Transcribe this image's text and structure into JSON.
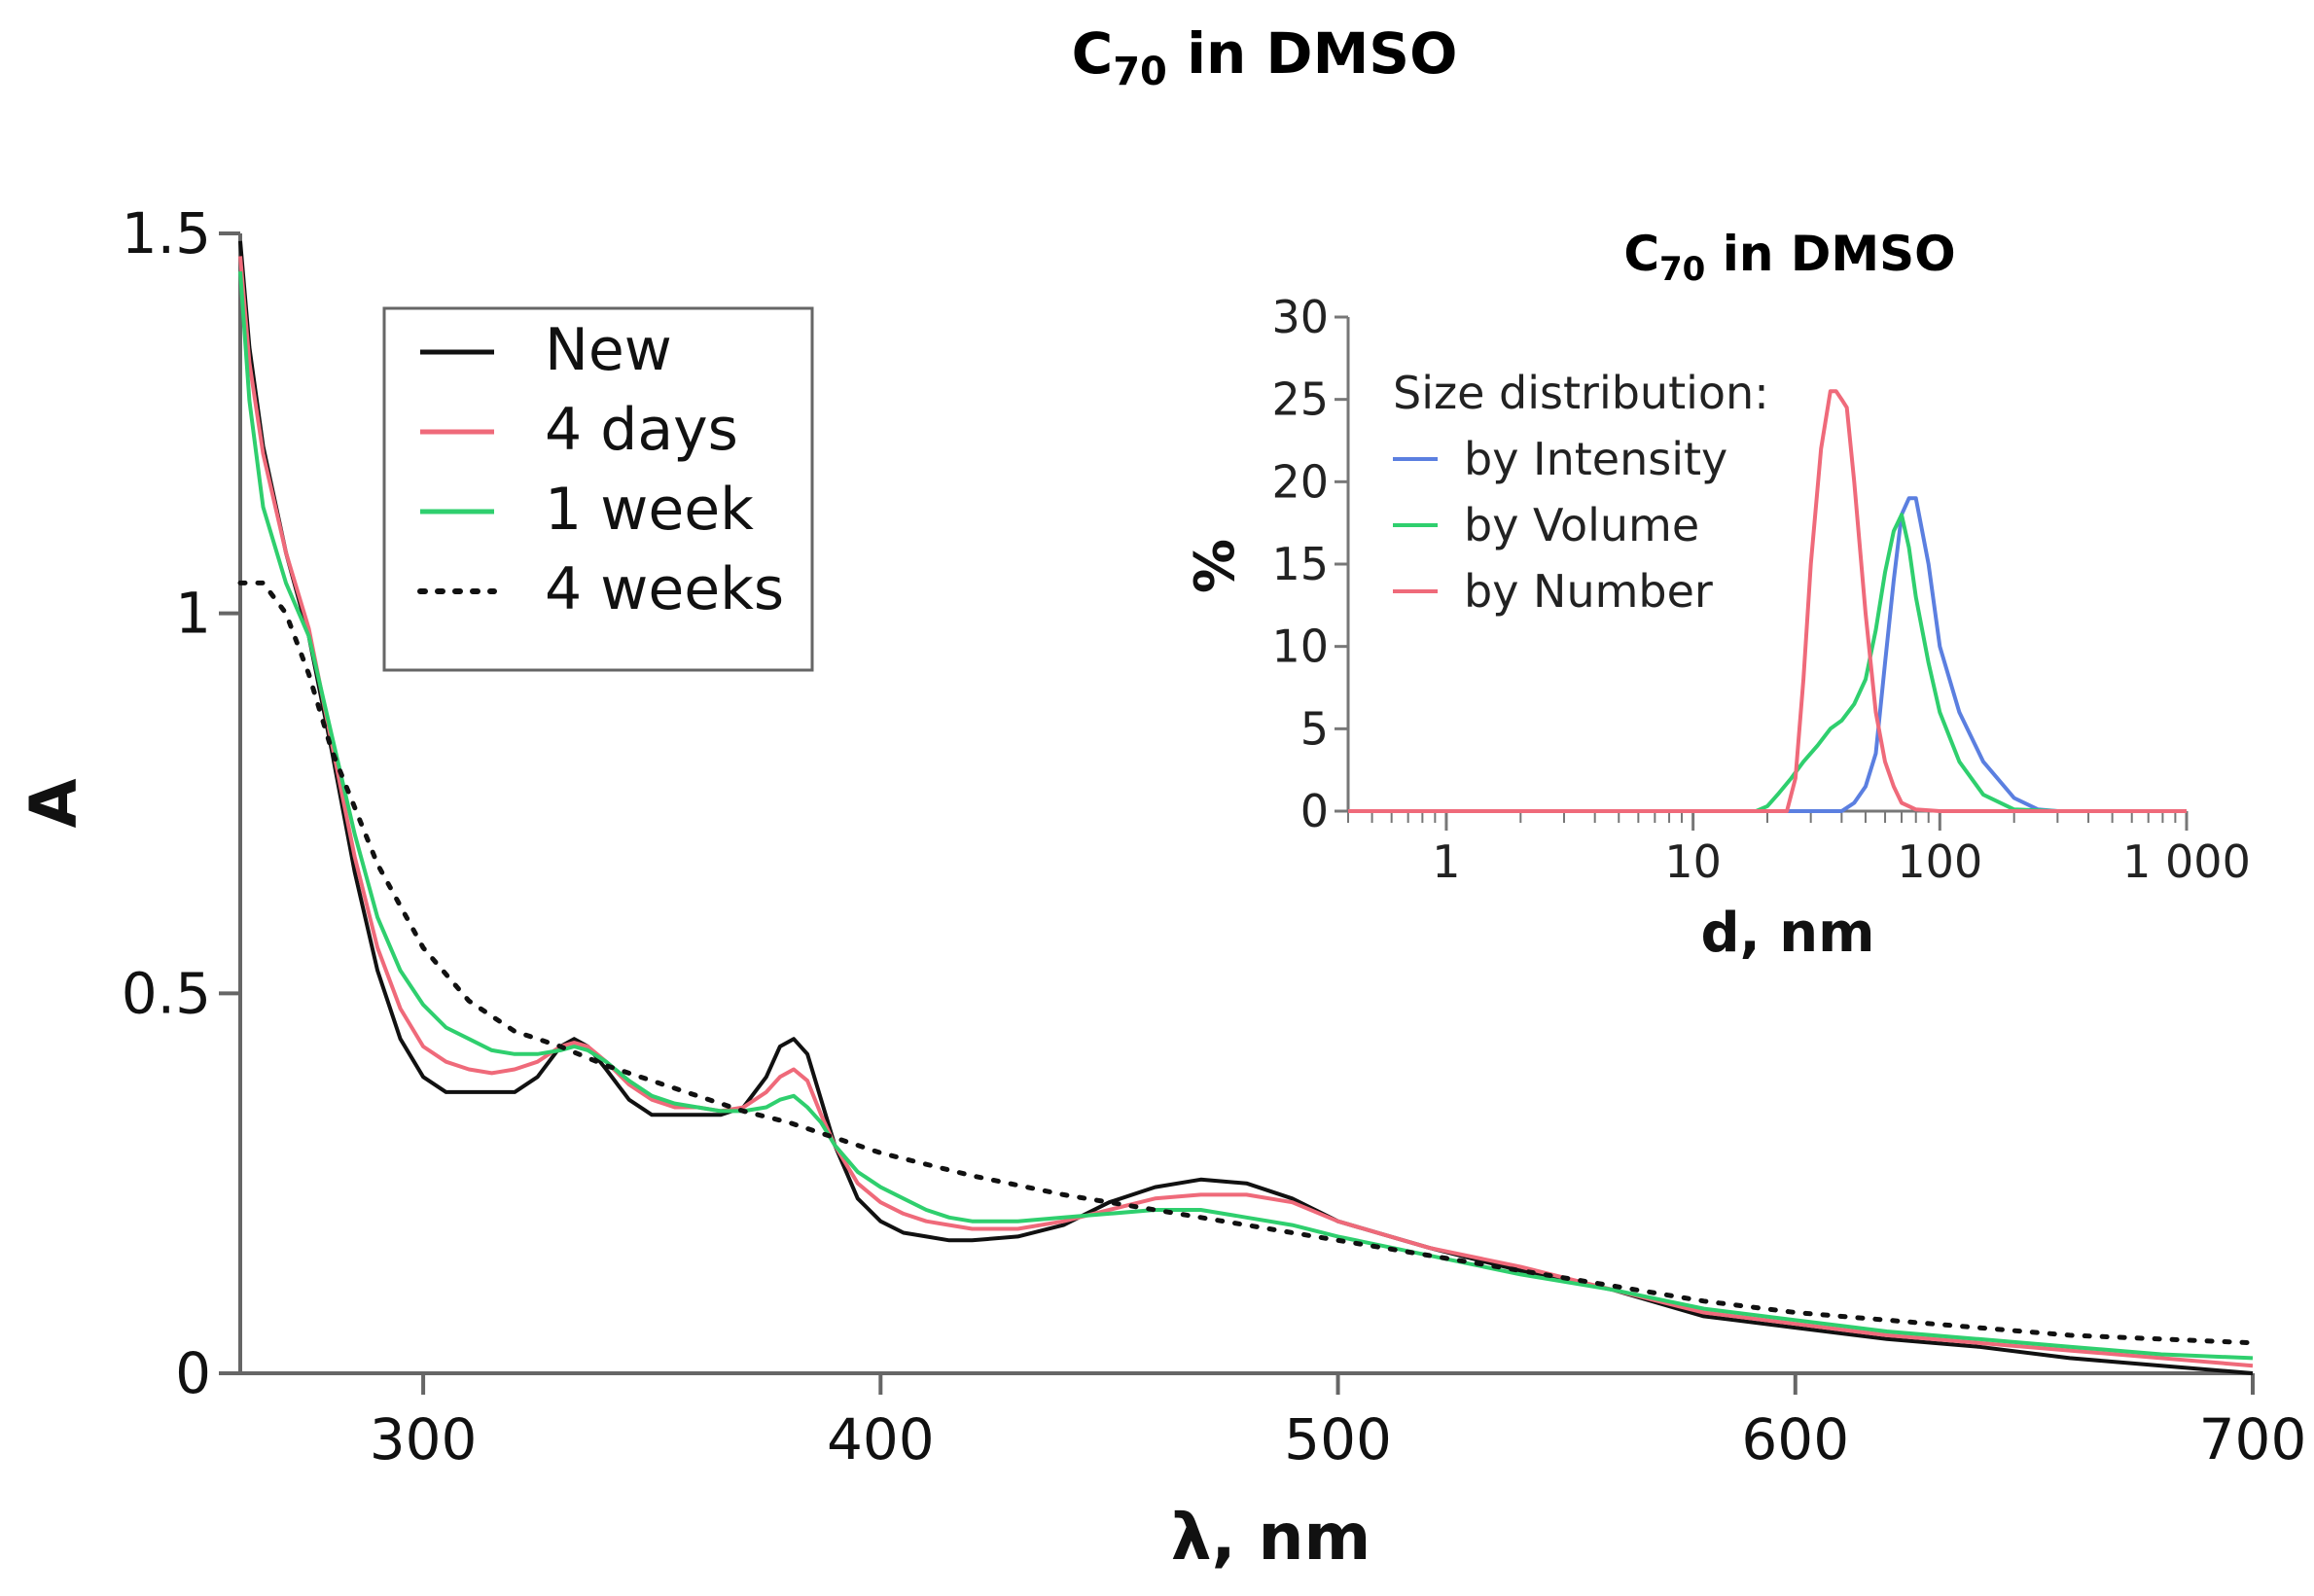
{
  "chart_data": [
    {
      "type": "line",
      "title": "C70 in DMSO",
      "title_base": "C",
      "title_sub": "70",
      "title_rest": " in DMSO",
      "xlabel": "λ, nm",
      "ylabel": "A",
      "xlim": [
        260,
        700
      ],
      "ylim": [
        0,
        1.5
      ],
      "x_ticks": [
        300,
        400,
        500,
        600,
        700
      ],
      "x_tick_labels": [
        "300",
        "400",
        "500",
        "600",
        "700"
      ],
      "y_ticks": [
        0,
        0.5,
        1,
        1.5
      ],
      "y_tick_labels": [
        "0",
        "0.5",
        "1",
        "1.5"
      ],
      "legend": {
        "position": "top-left"
      },
      "series": [
        {
          "name": "New",
          "color": "#111111",
          "style": "solid",
          "x": [
            260,
            262,
            265,
            270,
            275,
            280,
            285,
            290,
            295,
            300,
            305,
            310,
            315,
            320,
            325,
            330,
            333,
            336,
            340,
            345,
            350,
            355,
            360,
            365,
            370,
            375,
            378,
            381,
            384,
            387,
            390,
            395,
            400,
            405,
            410,
            415,
            420,
            430,
            440,
            450,
            460,
            470,
            480,
            490,
            500,
            520,
            540,
            560,
            580,
            600,
            620,
            640,
            660,
            680,
            700
          ],
          "y": [
            1.49,
            1.35,
            1.22,
            1.08,
            0.97,
            0.82,
            0.66,
            0.53,
            0.44,
            0.39,
            0.37,
            0.37,
            0.37,
            0.37,
            0.39,
            0.43,
            0.44,
            0.43,
            0.4,
            0.36,
            0.34,
            0.34,
            0.34,
            0.34,
            0.35,
            0.39,
            0.43,
            0.44,
            0.42,
            0.36,
            0.3,
            0.23,
            0.2,
            0.185,
            0.18,
            0.175,
            0.175,
            0.18,
            0.195,
            0.225,
            0.245,
            0.255,
            0.25,
            0.23,
            0.2,
            0.165,
            0.135,
            0.11,
            0.075,
            0.06,
            0.045,
            0.035,
            0.02,
            0.01,
            0.0
          ]
        },
        {
          "name": "4 days",
          "color": "#ef6a7a",
          "style": "solid",
          "x": [
            260,
            262,
            265,
            270,
            275,
            280,
            285,
            290,
            295,
            300,
            305,
            310,
            315,
            320,
            325,
            330,
            333,
            336,
            340,
            345,
            350,
            355,
            360,
            365,
            370,
            375,
            378,
            381,
            384,
            387,
            390,
            395,
            400,
            405,
            410,
            415,
            420,
            430,
            440,
            450,
            460,
            470,
            480,
            490,
            500,
            520,
            540,
            560,
            580,
            600,
            620,
            640,
            660,
            680,
            700
          ],
          "y": [
            1.47,
            1.33,
            1.21,
            1.08,
            0.98,
            0.83,
            0.68,
            0.56,
            0.48,
            0.43,
            0.41,
            0.4,
            0.395,
            0.4,
            0.41,
            0.43,
            0.435,
            0.43,
            0.41,
            0.38,
            0.36,
            0.35,
            0.35,
            0.345,
            0.35,
            0.37,
            0.39,
            0.4,
            0.385,
            0.34,
            0.3,
            0.25,
            0.225,
            0.21,
            0.2,
            0.195,
            0.19,
            0.19,
            0.2,
            0.215,
            0.23,
            0.235,
            0.235,
            0.225,
            0.2,
            0.165,
            0.14,
            0.11,
            0.08,
            0.065,
            0.05,
            0.04,
            0.03,
            0.02,
            0.01
          ]
        },
        {
          "name": "1 week",
          "color": "#2fcf6e",
          "style": "solid",
          "x": [
            260,
            262,
            265,
            270,
            275,
            280,
            285,
            290,
            295,
            300,
            305,
            310,
            315,
            320,
            325,
            330,
            333,
            336,
            340,
            345,
            350,
            355,
            360,
            365,
            370,
            375,
            378,
            381,
            384,
            387,
            390,
            395,
            400,
            405,
            410,
            415,
            420,
            430,
            440,
            450,
            460,
            470,
            480,
            490,
            500,
            520,
            540,
            560,
            580,
            600,
            620,
            640,
            660,
            680,
            700
          ],
          "y": [
            1.45,
            1.28,
            1.14,
            1.04,
            0.97,
            0.84,
            0.71,
            0.6,
            0.53,
            0.485,
            0.455,
            0.44,
            0.425,
            0.42,
            0.42,
            0.425,
            0.43,
            0.425,
            0.41,
            0.385,
            0.365,
            0.355,
            0.35,
            0.345,
            0.345,
            0.35,
            0.36,
            0.365,
            0.35,
            0.33,
            0.3,
            0.265,
            0.245,
            0.23,
            0.215,
            0.205,
            0.2,
            0.2,
            0.205,
            0.21,
            0.215,
            0.215,
            0.205,
            0.195,
            0.18,
            0.155,
            0.13,
            0.11,
            0.085,
            0.07,
            0.055,
            0.045,
            0.035,
            0.025,
            0.02
          ]
        },
        {
          "name": "4 weeks",
          "color": "#111111",
          "style": "dotted",
          "x": [
            260,
            265,
            270,
            275,
            280,
            290,
            300,
            310,
            320,
            330,
            340,
            350,
            360,
            370,
            380,
            390,
            400,
            420,
            440,
            460,
            480,
            500,
            520,
            540,
            560,
            580,
            600,
            620,
            640,
            660,
            680,
            700
          ],
          "y": [
            1.04,
            1.04,
            1.0,
            0.92,
            0.82,
            0.67,
            0.56,
            0.49,
            0.45,
            0.43,
            0.405,
            0.385,
            0.365,
            0.345,
            0.33,
            0.31,
            0.29,
            0.26,
            0.235,
            0.215,
            0.195,
            0.175,
            0.155,
            0.135,
            0.115,
            0.095,
            0.08,
            0.07,
            0.06,
            0.05,
            0.045,
            0.04
          ]
        }
      ]
    },
    {
      "type": "line",
      "title": "C70 in DMSO",
      "title_base": "C",
      "title_sub": "70",
      "title_rest": " in DMSO",
      "xlabel": "d, nm",
      "ylabel": "%",
      "xscale": "log",
      "xlim": [
        0.4,
        1000
      ],
      "ylim": [
        0,
        30
      ],
      "x_ticks": [
        1,
        10,
        100,
        1000
      ],
      "x_tick_labels": [
        "1",
        "10",
        "100",
        "1 000"
      ],
      "y_ticks": [
        0,
        5,
        10,
        15,
        20,
        25,
        30
      ],
      "y_tick_labels": [
        "0",
        "5",
        "10",
        "15",
        "20",
        "25",
        "30"
      ],
      "legend": {
        "position": "top-left",
        "title": "Size distribution:"
      },
      "series": [
        {
          "name": "by Intensity",
          "color": "#5b7fe0",
          "x": [
            0.4,
            20,
            40,
            45,
            50,
            55,
            60,
            65,
            70,
            75,
            80,
            90,
            100,
            120,
            150,
            200,
            250,
            300,
            1000
          ],
          "y": [
            0,
            0,
            0,
            0.5,
            1.5,
            3.5,
            9,
            14,
            18,
            19,
            19,
            15,
            10,
            6,
            3,
            0.8,
            0.1,
            0,
            0
          ]
        },
        {
          "name": "by Volume",
          "color": "#2fcf6e",
          "x": [
            0.4,
            18,
            20,
            22,
            25,
            28,
            32,
            36,
            40,
            45,
            50,
            55,
            60,
            65,
            70,
            75,
            80,
            90,
            100,
            120,
            150,
            200,
            300,
            1000
          ],
          "y": [
            0,
            0,
            0.3,
            1,
            2,
            3,
            4,
            5,
            5.5,
            6.5,
            8,
            11,
            14.5,
            17,
            18,
            16,
            13,
            9,
            6,
            3,
            1,
            0.1,
            0,
            0
          ]
        },
        {
          "name": "by Number",
          "color": "#ef6a7a",
          "x": [
            0.4,
            24,
            26,
            28,
            30,
            33,
            36,
            38,
            40,
            42,
            45,
            50,
            55,
            60,
            65,
            70,
            80,
            100,
            1000
          ],
          "y": [
            0,
            0,
            2,
            8,
            15,
            22,
            25.5,
            25.5,
            25,
            24.5,
            20,
            12,
            6,
            3,
            1.5,
            0.5,
            0.1,
            0,
            0
          ]
        }
      ]
    }
  ]
}
